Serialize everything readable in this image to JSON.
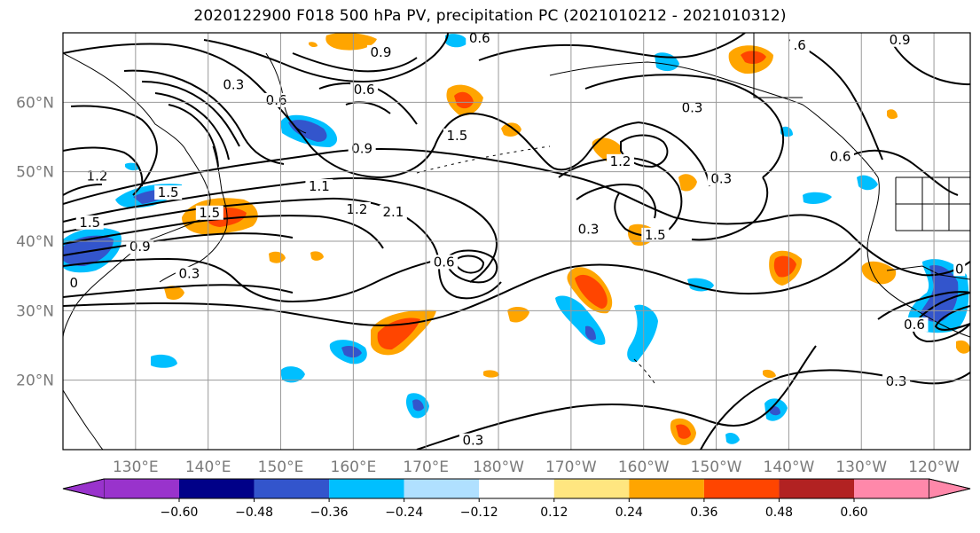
{
  "title": "2020122900 F018 500 hPa PV, precipitation PC (2021010212 - 2021010312)",
  "map": {
    "lon_range": [
      120,
      245
    ],
    "lat_range": [
      10,
      70
    ],
    "lat_ticks": [
      {
        "value": 20,
        "label": "20°N"
      },
      {
        "value": 30,
        "label": "30°N"
      },
      {
        "value": 40,
        "label": "40°N"
      },
      {
        "value": 50,
        "label": "50°N"
      },
      {
        "value": 60,
        "label": "60°N"
      }
    ],
    "lon_ticks": [
      {
        "value": 130,
        "label": "130°E"
      },
      {
        "value": 140,
        "label": "140°E"
      },
      {
        "value": 150,
        "label": "150°E"
      },
      {
        "value": 160,
        "label": "160°E"
      },
      {
        "value": 170,
        "label": "170°E"
      },
      {
        "value": 180,
        "label": "180°W"
      },
      {
        "value": 190,
        "label": "170°W"
      },
      {
        "value": 200,
        "label": "160°W"
      },
      {
        "value": 210,
        "label": "150°W"
      },
      {
        "value": 220,
        "label": "140°W"
      },
      {
        "value": 230,
        "label": "130°W"
      },
      {
        "value": 240,
        "label": "120°W"
      }
    ],
    "grid": true,
    "contour_labels": [
      {
        "text": "0.3",
        "lon": 143.5,
        "lat": 62.0
      },
      {
        "text": "0.9",
        "lon": 163.8,
        "lat": 66.7
      },
      {
        "text": "0.6",
        "lon": 177.4,
        "lat": 68.7
      },
      {
        "text": "0.6",
        "lon": 161.5,
        "lat": 61.3
      },
      {
        "text": "0.6",
        "lon": 149.4,
        "lat": 59.8
      },
      {
        "text": "1.5",
        "lon": 174.3,
        "lat": 54.7
      },
      {
        "text": "0.9",
        "lon": 161.2,
        "lat": 52.8
      },
      {
        "text": "1.2",
        "lon": 124.7,
        "lat": 48.9
      },
      {
        "text": "1.5",
        "lon": 123.7,
        "lat": 42.2
      },
      {
        "text": "1.5",
        "lon": 134.5,
        "lat": 46.5
      },
      {
        "text": "1.5",
        "lon": 140.2,
        "lat": 43.6
      },
      {
        "text": "0.9",
        "lon": 130.6,
        "lat": 38.7
      },
      {
        "text": "0.3",
        "lon": 137.4,
        "lat": 34.8
      },
      {
        "text": "1.1",
        "lon": 155.3,
        "lat": 47.4
      },
      {
        "text": "1.2",
        "lon": 160.5,
        "lat": 44.1
      },
      {
        "text": "2.1",
        "lon": 165.5,
        "lat": 43.7
      },
      {
        "text": "0.6",
        "lon": 172.5,
        "lat": 36.5
      },
      {
        "text": "1.2",
        "lon": 196.8,
        "lat": 51.0
      },
      {
        "text": "0.3",
        "lon": 210.7,
        "lat": 48.5
      },
      {
        "text": "0.3",
        "lon": 192.4,
        "lat": 41.2
      },
      {
        "text": "1.5",
        "lon": 201.6,
        "lat": 40.4
      },
      {
        "text": "0.6",
        "lon": 227.1,
        "lat": 51.7
      },
      {
        "text": "0.3",
        "lon": 206.7,
        "lat": 58.7
      },
      {
        "text": ".6",
        "lon": 221.5,
        "lat": 67.7
      },
      {
        "text": "0.9",
        "lon": 235.3,
        "lat": 68.5
      },
      {
        "text": "0",
        "lon": 243.5,
        "lat": 35.5
      },
      {
        "text": "0.6",
        "lon": 237.3,
        "lat": 27.5
      },
      {
        "text": "0.3",
        "lon": 234.8,
        "lat": 19.3
      },
      {
        "text": "0.3",
        "lon": 176.5,
        "lat": 10.8
      },
      {
        "text": "0",
        "lon": 121.5,
        "lat": 33.5
      }
    ]
  },
  "colorbar": {
    "ticks": [
      "−0.60",
      "−0.48",
      "−0.36",
      "−0.24",
      "−0.12",
      "0.12",
      "0.24",
      "0.36",
      "0.48",
      "0.60"
    ],
    "colors": [
      "#9933cc",
      "#000088",
      "#3355cc",
      "#00bfff",
      "#b0e0ff",
      "#ffffff",
      "#ffe680",
      "#ffa500",
      "#ff4500",
      "#b22222",
      "#ff88aa"
    ]
  }
}
